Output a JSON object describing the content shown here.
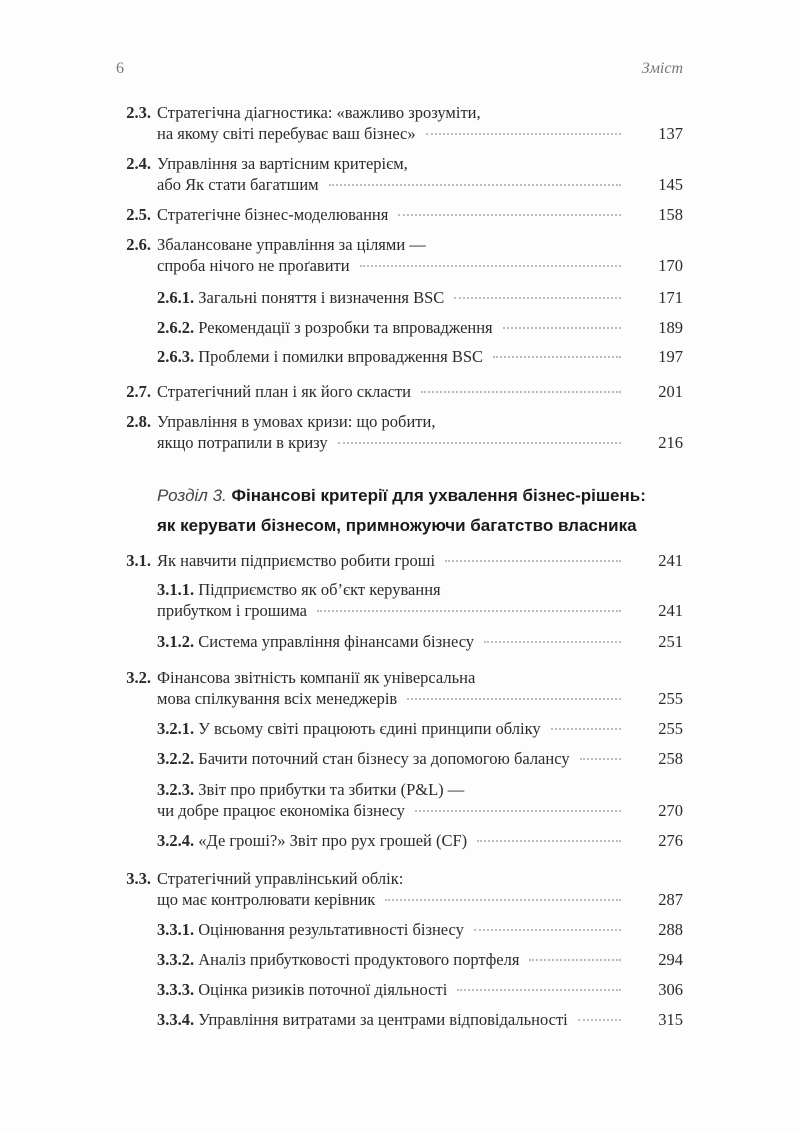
{
  "header": {
    "page_number": "6",
    "running_title": "Зміст"
  },
  "chapter": {
    "label": "Розділ 3.",
    "title_line1": "Фінансові критерії для ухвалення бізнес-рішень:",
    "title_line2": "як керувати бізнесом, примножуючи багатство власника"
  },
  "entries": [
    {
      "num": "2.3.",
      "lines": [
        "Стратегічна діагностика: «важливо зрозуміти,",
        "на якому світі перебуває ваш бізнес»"
      ],
      "page": "137"
    },
    {
      "num": "2.4.",
      "lines": [
        "Управління за вартісним критерієм,",
        "або Як стати багатшим"
      ],
      "page": "145"
    },
    {
      "num": "2.5.",
      "lines": [
        "Стратегічне бізнес-моделювання"
      ],
      "page": "158"
    },
    {
      "num": "2.6.",
      "lines": [
        "Збалансоване управління за цілями —",
        "спроба нічого не проґавити"
      ],
      "page": "170"
    },
    {
      "sub": "2.6.1.",
      "lines": [
        "Загальні поняття і визначення BSC"
      ],
      "page": "171"
    },
    {
      "sub": "2.6.2.",
      "lines": [
        "Рекомендації з розробки та впровадження"
      ],
      "page": "189"
    },
    {
      "sub": "2.6.3.",
      "lines": [
        "Проблеми і помилки впровадження BSC"
      ],
      "page": "197"
    },
    {
      "num": "2.7.",
      "lines": [
        "Стратегічний план і як його скласти"
      ],
      "page": "201"
    },
    {
      "num": "2.8.",
      "lines": [
        "Управління в умовах кризи: що робити,",
        "якщо потрапили в кризу"
      ],
      "page": "216"
    },
    {
      "num": "3.1.",
      "lines": [
        "Як навчити підприємство робити гроші"
      ],
      "page": "241"
    },
    {
      "sub": "3.1.1.",
      "lines": [
        "Підприємство як об’єкт керування",
        "прибутком і грошима"
      ],
      "page": "241"
    },
    {
      "sub": "3.1.2.",
      "lines": [
        "Система управління фінансами бізнесу"
      ],
      "page": "251"
    },
    {
      "num": "3.2.",
      "lines": [
        "Фінансова звітність компанії як універсальна",
        "мова спілкування всіх менеджерів"
      ],
      "page": "255"
    },
    {
      "sub": "3.2.1.",
      "lines": [
        "У всьому світі працюють єдині принципи обліку"
      ],
      "page": "255"
    },
    {
      "sub": "3.2.2.",
      "lines": [
        "Бачити поточний стан бізнесу за допомогою балансу"
      ],
      "page": "258"
    },
    {
      "sub": "3.2.3.",
      "lines": [
        "Звіт про прибутки та збитки (P&L) —",
        "чи добре працює економіка бізнесу"
      ],
      "page": "270"
    },
    {
      "sub": "3.2.4.",
      "lines": [
        "«Де гроші?» Звіт про рух грошей (CF)"
      ],
      "page": "276"
    },
    {
      "num": "3.3.",
      "lines": [
        "Стратегічний управлінський облік:",
        "що має контролювати керівник"
      ],
      "page": "287"
    },
    {
      "sub": "3.3.1.",
      "lines": [
        "Оцінювання результативності бізнесу"
      ],
      "page": "288"
    },
    {
      "sub": "3.3.2.",
      "lines": [
        "Аналіз прибутковості продуктового портфеля"
      ],
      "page": "294"
    },
    {
      "sub": "3.3.3.",
      "lines": [
        "Оцінка ризиків поточної діяльності"
      ],
      "page": "306"
    },
    {
      "sub": "3.3.4.",
      "lines": [
        "Управління витратами за центрами відповідальності"
      ],
      "page": "315"
    }
  ]
}
